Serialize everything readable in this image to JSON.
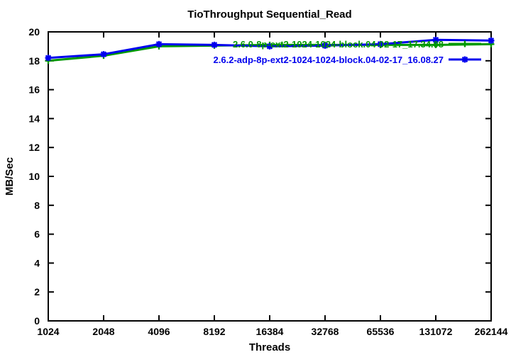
{
  "figure": {
    "background": "#ffffff",
    "border_color": "#000000"
  },
  "chart_data": {
    "type": "line",
    "title": "TioThroughput Sequential_Read",
    "xlabel": "Threads",
    "ylabel": "MB/Sec",
    "x_ticks": [
      "1024",
      "2048",
      "4096",
      "8192",
      "16384",
      "32768",
      "65536",
      "131072",
      "262144"
    ],
    "x_scale": "log2-equal-spacing",
    "ylim": [
      0,
      20
    ],
    "y_tick_step": 2,
    "grid": false,
    "legend_position": "top-right-inside",
    "series": [
      {
        "name": "2.6.0-8p-ext2-1024-1024-block.04-02-17_17.34.08",
        "color": "#009900",
        "marker": "plus",
        "values": [
          18.0,
          18.35,
          19.0,
          19.05,
          19.1,
          19.1,
          19.1,
          19.1,
          19.15
        ]
      },
      {
        "name": "2.6.2-adp-8p-ext2-1024-1024-block.04-02-17_16.08.27",
        "color": "#0000ee",
        "marker": "asterisk",
        "values": [
          18.2,
          18.45,
          19.15,
          19.1,
          19.0,
          19.05,
          19.15,
          19.45,
          19.4
        ]
      }
    ]
  }
}
